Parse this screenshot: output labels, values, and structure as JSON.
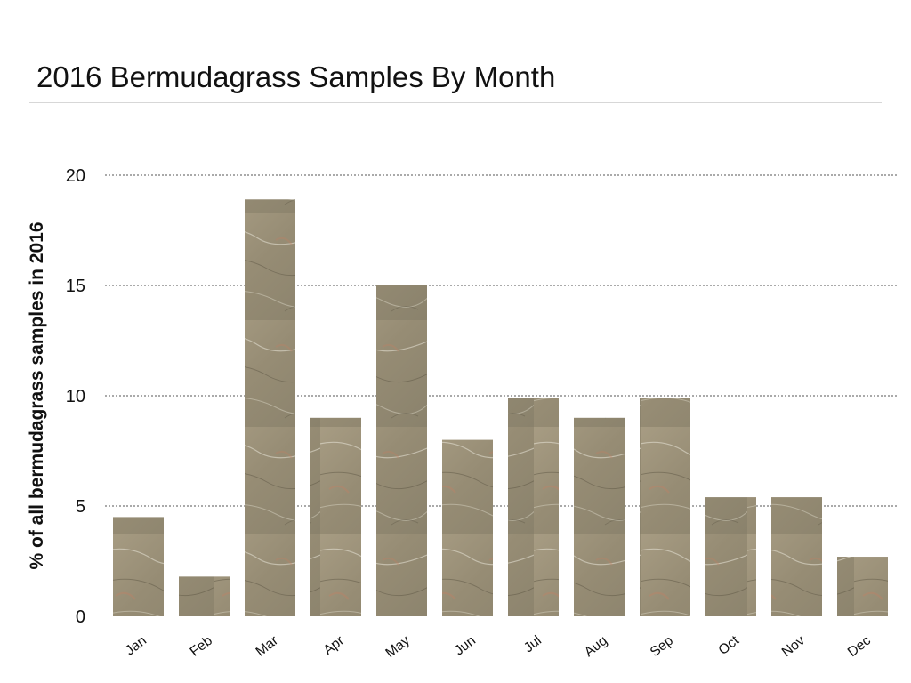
{
  "chart_data": {
    "type": "bar",
    "title": "2016 Bermudagrass Samples By Month",
    "xlabel": "",
    "ylabel": "% of all bermudagrass samples in 2016",
    "categories": [
      "Jan",
      "Feb",
      "Mar",
      "Apr",
      "May",
      "Jun",
      "Jul",
      "Aug",
      "Sep",
      "Oct",
      "Nov",
      "Dec"
    ],
    "values": [
      4.5,
      1.8,
      18.9,
      9.0,
      15.0,
      8.0,
      9.9,
      9.0,
      9.9,
      5.4,
      5.4,
      2.7
    ],
    "ylim": [
      0,
      20
    ],
    "yticks": [
      0,
      5,
      10,
      15,
      20
    ],
    "grid": "horizontal dotted",
    "legend": "none",
    "bar_fill": "stone texture",
    "bar_color": "#9b9179"
  }
}
